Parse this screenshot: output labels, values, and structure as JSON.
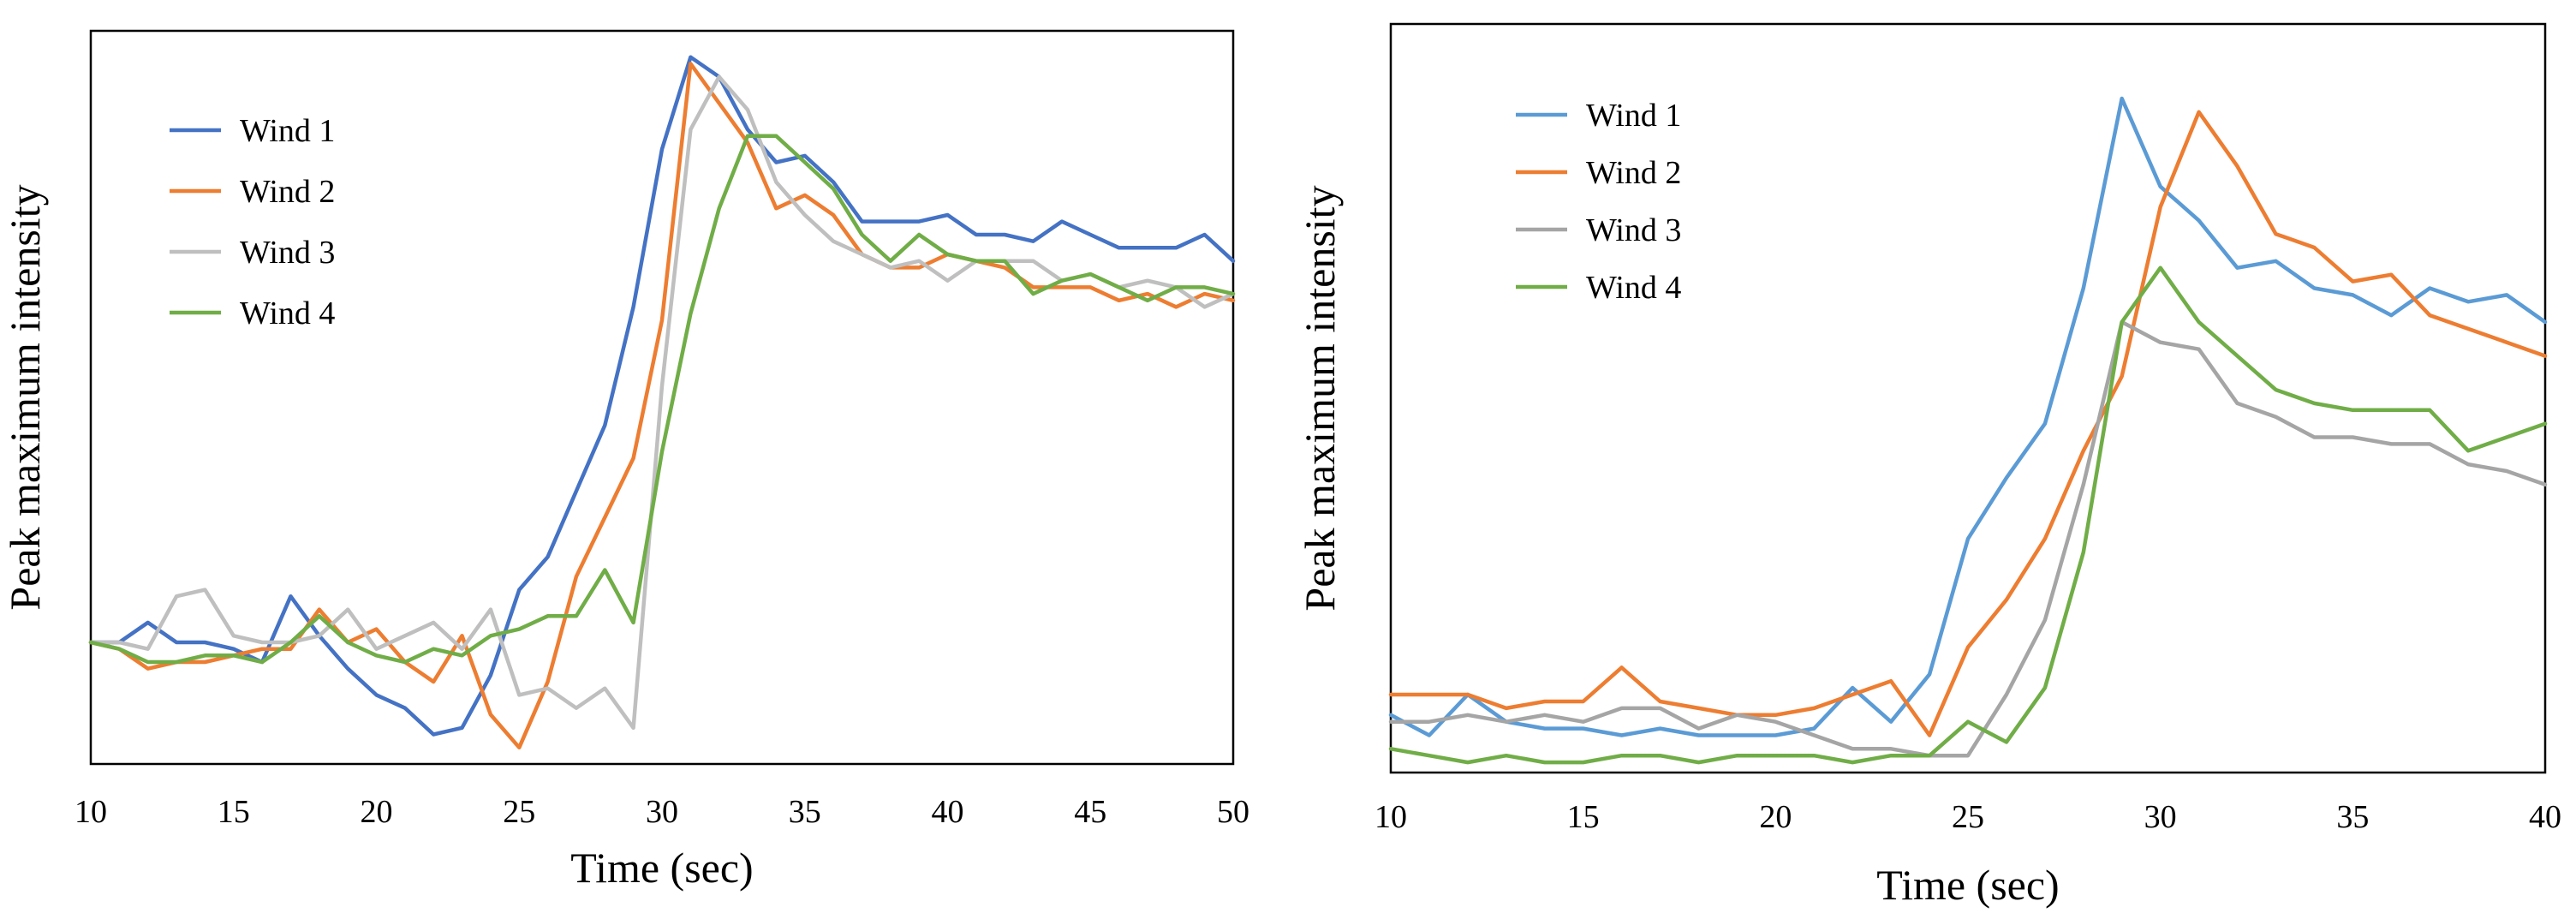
{
  "chart_data": [
    {
      "type": "line",
      "title": "",
      "xlabel": "Time (sec)",
      "ylabel": "Peak maximum intensity",
      "xlim": [
        10,
        50
      ],
      "ylim": [
        0,
        1
      ],
      "xticks": [
        "10",
        "15",
        "20",
        "25",
        "30",
        "35",
        "40",
        "45",
        "50"
      ],
      "grid": false,
      "legend": "top-left",
      "x": [
        10,
        11,
        12,
        13,
        14,
        15,
        16,
        17,
        18,
        19,
        20,
        21,
        22,
        23,
        24,
        25,
        26,
        27,
        28,
        29,
        30,
        31,
        32,
        33,
        34,
        35,
        36,
        37,
        38,
        39,
        40,
        41,
        42,
        43,
        44,
        45,
        46,
        47,
        48,
        49,
        50
      ],
      "series": [
        {
          "name": "Wind 1",
          "color": "#4472C4",
          "values": [
            0.16,
            0.16,
            0.19,
            0.16,
            0.16,
            0.15,
            0.13,
            0.23,
            0.17,
            0.12,
            0.08,
            0.06,
            0.02,
            0.03,
            0.11,
            0.24,
            0.29,
            0.39,
            0.49,
            0.67,
            0.91,
            1.05,
            1.02,
            0.94,
            0.89,
            0.9,
            0.86,
            0.8,
            0.8,
            0.8,
            0.81,
            0.78,
            0.78,
            0.77,
            0.8,
            0.78,
            0.76,
            0.76,
            0.76,
            0.78,
            0.74
          ]
        },
        {
          "name": "Wind 2",
          "color": "#ED7D31",
          "values": [
            0.16,
            0.15,
            0.12,
            0.13,
            0.13,
            0.14,
            0.15,
            0.15,
            0.21,
            0.16,
            0.18,
            0.13,
            0.1,
            0.17,
            0.05,
            0.0,
            0.1,
            0.26,
            0.35,
            0.44,
            0.65,
            1.04,
            0.98,
            0.92,
            0.82,
            0.84,
            0.81,
            0.75,
            0.73,
            0.73,
            0.75,
            0.74,
            0.73,
            0.7,
            0.7,
            0.7,
            0.68,
            0.69,
            0.67,
            0.69,
            0.68
          ]
        },
        {
          "name": "Wind 3",
          "color": "#BFBFBF",
          "values": [
            0.16,
            0.16,
            0.15,
            0.23,
            0.24,
            0.17,
            0.16,
            0.16,
            0.17,
            0.21,
            0.15,
            0.17,
            0.19,
            0.15,
            0.21,
            0.08,
            0.09,
            0.06,
            0.09,
            0.03,
            0.55,
            0.94,
            1.02,
            0.97,
            0.86,
            0.81,
            0.77,
            0.75,
            0.73,
            0.74,
            0.71,
            0.74,
            0.74,
            0.74,
            0.71,
            0.72,
            0.7,
            0.71,
            0.7,
            0.67,
            0.69
          ]
        },
        {
          "name": "Wind 4",
          "color": "#70AD47",
          "values": [
            0.16,
            0.15,
            0.13,
            0.13,
            0.14,
            0.14,
            0.13,
            0.16,
            0.2,
            0.16,
            0.14,
            0.13,
            0.15,
            0.14,
            0.17,
            0.18,
            0.2,
            0.2,
            0.27,
            0.19,
            0.45,
            0.66,
            0.82,
            0.93,
            0.93,
            0.89,
            0.85,
            0.78,
            0.74,
            0.78,
            0.75,
            0.74,
            0.74,
            0.69,
            0.71,
            0.72,
            0.7,
            0.68,
            0.7,
            0.7,
            0.69
          ]
        }
      ]
    },
    {
      "type": "line",
      "title": "",
      "xlabel": "Time (sec)",
      "ylabel": "Peak maximum intensity",
      "xlim": [
        10,
        40
      ],
      "ylim": [
        0,
        1
      ],
      "xticks": [
        "10",
        "15",
        "20",
        "25",
        "30",
        "35",
        "40"
      ],
      "grid": false,
      "legend": "top-left",
      "x": [
        10,
        11,
        12,
        13,
        14,
        15,
        16,
        17,
        18,
        19,
        20,
        21,
        22,
        23,
        24,
        25,
        26,
        27,
        28,
        29,
        30,
        31,
        32,
        33,
        34,
        35,
        36,
        37,
        38,
        39,
        40
      ],
      "series": [
        {
          "name": "Wind 1",
          "color": "#5B9BD5",
          "values": [
            0.07,
            0.04,
            0.1,
            0.06,
            0.05,
            0.05,
            0.04,
            0.05,
            0.04,
            0.04,
            0.04,
            0.05,
            0.11,
            0.06,
            0.13,
            0.33,
            0.42,
            0.5,
            0.7,
            0.98,
            0.85,
            0.8,
            0.73,
            0.74,
            0.7,
            0.69,
            0.66,
            0.7,
            0.68,
            0.69,
            0.65
          ]
        },
        {
          "name": "Wind 2",
          "color": "#ED7D31",
          "values": [
            0.1,
            0.1,
            0.1,
            0.08,
            0.09,
            0.09,
            0.14,
            0.09,
            0.08,
            0.07,
            0.07,
            0.08,
            0.1,
            0.12,
            0.04,
            0.17,
            0.24,
            0.33,
            0.46,
            0.57,
            0.82,
            0.96,
            0.88,
            0.78,
            0.76,
            0.71,
            0.72,
            0.66,
            0.64,
            0.62,
            0.6
          ]
        },
        {
          "name": "Wind 3",
          "color": "#A5A5A5",
          "values": [
            0.06,
            0.06,
            0.07,
            0.06,
            0.07,
            0.06,
            0.08,
            0.08,
            0.05,
            0.07,
            0.06,
            0.04,
            0.02,
            0.02,
            0.01,
            0.01,
            0.1,
            0.21,
            0.41,
            0.65,
            0.62,
            0.61,
            0.53,
            0.51,
            0.48,
            0.48,
            0.47,
            0.47,
            0.44,
            0.43,
            0.41
          ]
        },
        {
          "name": "Wind 4",
          "color": "#70AD47",
          "values": [
            0.02,
            0.01,
            0.0,
            0.01,
            0.0,
            0.0,
            0.01,
            0.01,
            0.0,
            0.01,
            0.01,
            0.01,
            0.0,
            0.01,
            0.01,
            0.06,
            0.03,
            0.11,
            0.31,
            0.65,
            0.73,
            0.65,
            0.6,
            0.55,
            0.53,
            0.52,
            0.52,
            0.52,
            0.46,
            0.48,
            0.5
          ]
        }
      ]
    }
  ]
}
